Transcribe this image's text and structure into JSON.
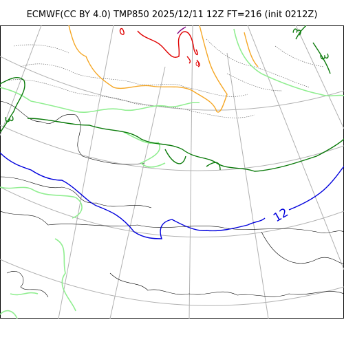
{
  "title": "ECMWF(CC BY 4.0) TMP850 2025/12/11 12Z FT=216 (init 0212Z)",
  "contour_labels": {
    "temp_12": "12",
    "temp_3_left": "3",
    "temp_3_right": "3",
    "temp_3_top_right": "3",
    "temp_0_top": "0"
  },
  "colors": {
    "graticule": "#b0b0b0",
    "coastline": "#000000",
    "contour_thin": "#555555",
    "contour_green": "#0a7a0a",
    "contour_lightgreen": "#90ee90",
    "contour_orange": "#f5a623",
    "contour_red": "#e00000",
    "contour_blue": "#0000dd",
    "contour_purple": "#800080"
  }
}
